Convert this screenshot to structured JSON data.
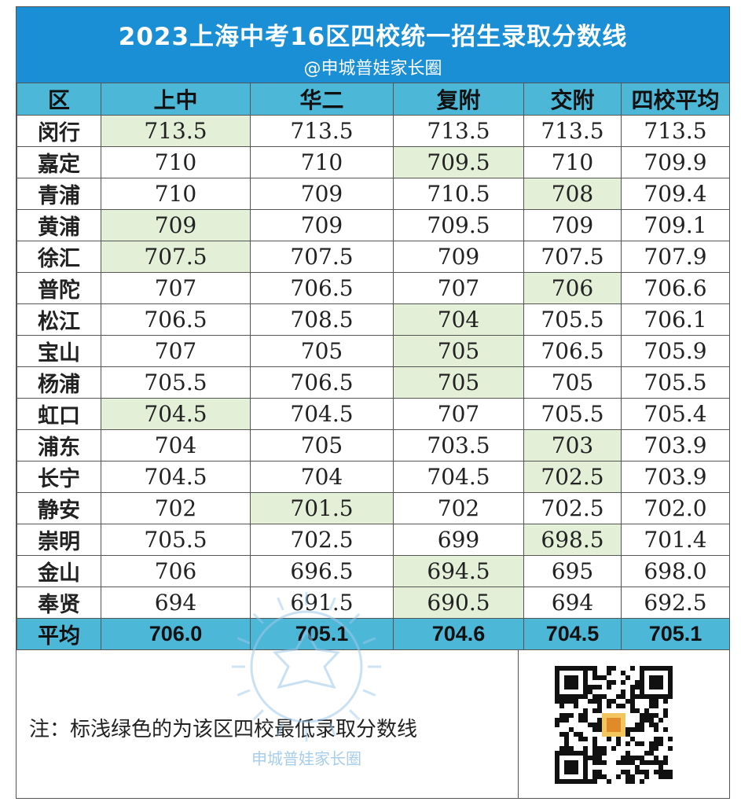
{
  "header": {
    "title": "2023上海中考16区四校统一招生录取分数线",
    "subtitle": "@申城普娃家长圈"
  },
  "columns": [
    "区",
    "上中",
    "华二",
    "复附",
    "交附",
    "四校平均"
  ],
  "rows": [
    {
      "district": "闵行",
      "values": [
        "713.5",
        "713.5",
        "713.5",
        "713.5",
        "713.5"
      ],
      "lowest": [
        0
      ]
    },
    {
      "district": "嘉定",
      "values": [
        "710",
        "710",
        "709.5",
        "710",
        "709.9"
      ],
      "lowest": [
        2
      ]
    },
    {
      "district": "青浦",
      "values": [
        "710",
        "709",
        "710.5",
        "708",
        "709.4"
      ],
      "lowest": [
        3
      ]
    },
    {
      "district": "黄浦",
      "values": [
        "709",
        "709",
        "709.5",
        "709",
        "709.1"
      ],
      "lowest": [
        0
      ]
    },
    {
      "district": "徐汇",
      "values": [
        "707.5",
        "707.5",
        "709",
        "707.5",
        "707.9"
      ],
      "lowest": [
        0
      ]
    },
    {
      "district": "普陀",
      "values": [
        "707",
        "706.5",
        "707",
        "706",
        "706.6"
      ],
      "lowest": [
        3
      ]
    },
    {
      "district": "松江",
      "values": [
        "706.5",
        "708.5",
        "704",
        "705.5",
        "706.1"
      ],
      "lowest": [
        2
      ]
    },
    {
      "district": "宝山",
      "values": [
        "707",
        "705",
        "705",
        "706.5",
        "705.9"
      ],
      "lowest": [
        2
      ]
    },
    {
      "district": "杨浦",
      "values": [
        "705.5",
        "706.5",
        "705",
        "705",
        "705.5"
      ],
      "lowest": [
        2
      ]
    },
    {
      "district": "虹口",
      "values": [
        "704.5",
        "704.5",
        "707",
        "705.5",
        "705.4"
      ],
      "lowest": [
        0
      ]
    },
    {
      "district": "浦东",
      "values": [
        "704",
        "705",
        "703.5",
        "703",
        "703.9"
      ],
      "lowest": [
        3
      ]
    },
    {
      "district": "长宁",
      "values": [
        "704.5",
        "704",
        "704.5",
        "702.5",
        "703.9"
      ],
      "lowest": [
        3
      ]
    },
    {
      "district": "静安",
      "values": [
        "702",
        "701.5",
        "702",
        "702.5",
        "702.0"
      ],
      "lowest": [
        1
      ]
    },
    {
      "district": "崇明",
      "values": [
        "705.5",
        "702.5",
        "699",
        "698.5",
        "701.4"
      ],
      "lowest": [
        3
      ]
    },
    {
      "district": "金山",
      "values": [
        "706",
        "696.5",
        "694.5",
        "695",
        "698.0"
      ],
      "lowest": [
        2
      ]
    },
    {
      "district": "奉贤",
      "values": [
        "694",
        "691.5",
        "690.5",
        "694",
        "692.5"
      ],
      "lowest": [
        2
      ]
    }
  ],
  "average_row": {
    "label": "平均",
    "values": [
      "706.0",
      "705.1",
      "704.6",
      "704.5",
      "705.1"
    ]
  },
  "note": "注：标浅绿色的为该区四校最低录取分数线",
  "watermark": {
    "text": "申城普娃家长圈"
  },
  "colors": {
    "title_band": "#1a8fd6",
    "header": "#4db7d8",
    "lowest_highlight": "#e3efd7"
  },
  "icons": {
    "qr": "qr-code-icon"
  }
}
